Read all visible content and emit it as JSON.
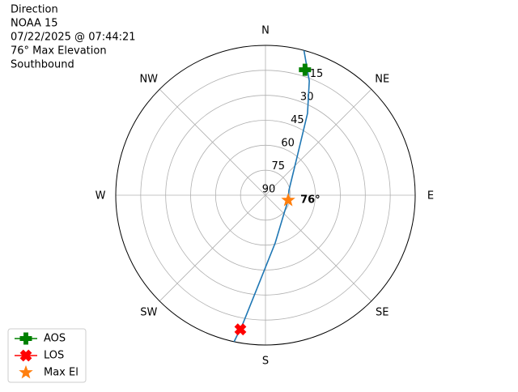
{
  "chart_data": {
    "type": "polar",
    "title_lines": [
      "Direction",
      "NOAA 15",
      "07/22/2025 @ 07:44:21",
      "76° Max Elevation",
      "Southbound"
    ],
    "rlim": [
      90,
      0
    ],
    "rticks": [
      15,
      30,
      45,
      60,
      75,
      90
    ],
    "rtick_angle": 22.5,
    "thetaticks": [
      {
        "value": 0,
        "label": "N"
      },
      {
        "value": 45,
        "label": "NE"
      },
      {
        "value": 90,
        "label": "E"
      },
      {
        "value": 135,
        "label": "SE"
      },
      {
        "value": 180,
        "label": "S"
      },
      {
        "value": 225,
        "label": "SW"
      },
      {
        "value": 270,
        "label": "W"
      },
      {
        "value": 315,
        "label": "NW"
      }
    ],
    "grid": true,
    "track": {
      "color": "#1f77b4",
      "azimuth": [
        14.9,
        21,
        27.2,
        38.1,
        78.3,
        102.5,
        128.4,
        168.5,
        184.2,
        190,
        192.1
      ],
      "elevation": [
        0,
        16.5,
        34.7,
        58.5,
        75.6,
        76,
        75.1,
        60.7,
        36.8,
        11.5,
        0
      ]
    },
    "series": [
      {
        "name": "AOS",
        "color": "#008000",
        "marker": "plus",
        "azimuth": [
          17.5
        ],
        "elevation": [
          11
        ]
      },
      {
        "name": "LOS",
        "color": "#ff0000",
        "marker": "x",
        "azimuth": [
          190.6
        ],
        "elevation": [
          8
        ]
      },
      {
        "name": "Max El",
        "color": "#ff7f0e",
        "marker": "star",
        "azimuth": [
          102.5
        ],
        "elevation": [
          76
        ]
      }
    ],
    "annotation": {
      "text": "76°",
      "series": 2
    },
    "legend": "lower left"
  }
}
